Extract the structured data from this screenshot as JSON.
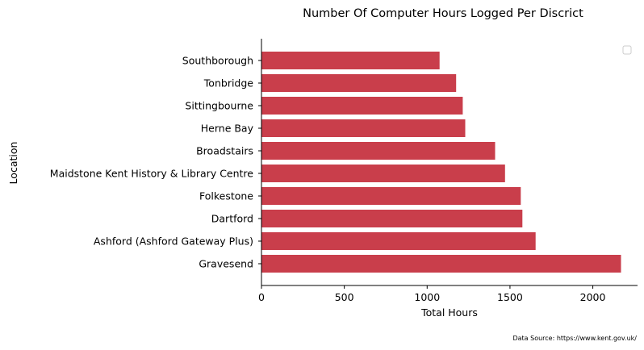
{
  "chart_data": {
    "type": "bar",
    "orientation": "horizontal",
    "title": "Number Of Computer Hours Logged Per Discrict",
    "xlabel": "Total Hours",
    "ylabel": "Location",
    "categories": [
      "Gravesend",
      "Ashford (Ashford Gateway Plus)",
      "Dartford",
      "Folkestone",
      "Maidstone  Kent History & Library Centre",
      "Broadstairs",
      "Herne Bay",
      "Sittingbourne",
      "Tonbridge",
      "Southborough"
    ],
    "values": [
      2170,
      1655,
      1575,
      1565,
      1470,
      1410,
      1230,
      1215,
      1175,
      1075
    ],
    "xlim": [
      0,
      2270
    ],
    "xticks": [
      0,
      500,
      1000,
      1500,
      2000
    ],
    "grid": false,
    "legend": "empty box, top-right",
    "bar_color": "#c93e4b",
    "source": "Data Source: https://www.kent.gov.uk/"
  }
}
